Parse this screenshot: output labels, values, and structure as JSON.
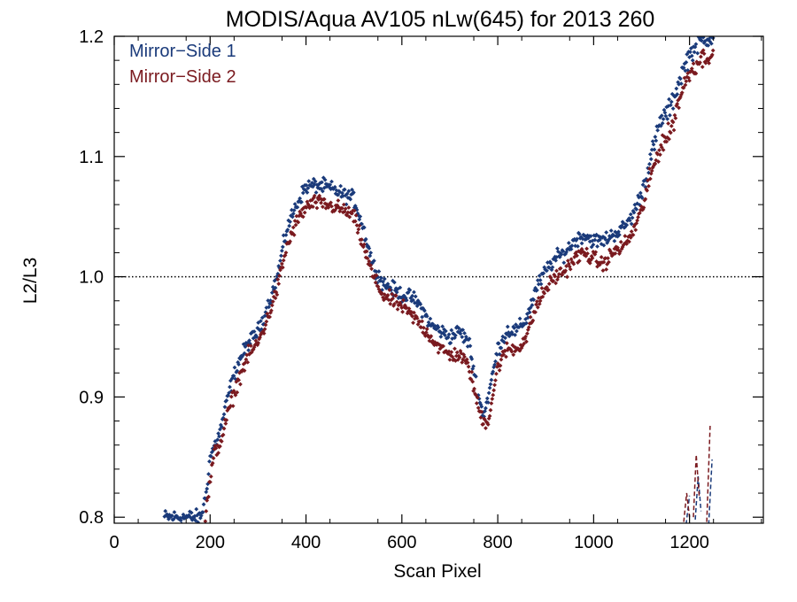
{
  "chart_data": {
    "type": "scatter",
    "title": "MODIS/Aqua AV105 nLw(645) for 2013 260",
    "xlabel": "Scan Pixel",
    "ylabel": "L2/L3",
    "xlim": [
      0,
      1354
    ],
    "ylim": [
      0.795,
      1.2
    ],
    "xticks": [
      0,
      200,
      400,
      600,
      800,
      1000,
      1200
    ],
    "xtick_labels": [
      "0",
      "200",
      "400",
      "600",
      "800",
      "1000",
      "1200"
    ],
    "yticks": [
      0.8,
      0.9,
      1.0,
      1.1,
      1.2
    ],
    "ytick_labels": [
      "0.8",
      "0.9",
      "1.0",
      "1.1",
      "1.2"
    ],
    "reference_line": 1.0,
    "grid": false,
    "legend_position": "top-left",
    "series": [
      {
        "name": "Mirror−Side 1",
        "color": "#1a3a7a",
        "anchors": [
          [
            105,
            0.8
          ],
          [
            180,
            0.8
          ],
          [
            190,
            0.815
          ],
          [
            200,
            0.85
          ],
          [
            220,
            0.87
          ],
          [
            240,
            0.905
          ],
          [
            260,
            0.93
          ],
          [
            280,
            0.945
          ],
          [
            300,
            0.955
          ],
          [
            320,
            0.975
          ],
          [
            340,
            1.0
          ],
          [
            360,
            1.04
          ],
          [
            380,
            1.06
          ],
          [
            400,
            1.075
          ],
          [
            420,
            1.076
          ],
          [
            440,
            1.075
          ],
          [
            460,
            1.072
          ],
          [
            480,
            1.068
          ],
          [
            500,
            1.065
          ],
          [
            520,
            1.04
          ],
          [
            540,
            1.01
          ],
          [
            560,
            0.995
          ],
          [
            580,
            0.99
          ],
          [
            600,
            0.985
          ],
          [
            620,
            0.983
          ],
          [
            640,
            0.975
          ],
          [
            660,
            0.96
          ],
          [
            680,
            0.955
          ],
          [
            700,
            0.95
          ],
          [
            720,
            0.955
          ],
          [
            740,
            0.945
          ],
          [
            760,
            0.9
          ],
          [
            770,
            0.885
          ],
          [
            780,
            0.9
          ],
          [
            800,
            0.94
          ],
          [
            820,
            0.955
          ],
          [
            840,
            0.955
          ],
          [
            860,
            0.965
          ],
          [
            880,
            0.99
          ],
          [
            900,
            1.005
          ],
          [
            920,
            1.015
          ],
          [
            940,
            1.02
          ],
          [
            960,
            1.03
          ],
          [
            980,
            1.035
          ],
          [
            1000,
            1.03
          ],
          [
            1020,
            1.03
          ],
          [
            1040,
            1.035
          ],
          [
            1060,
            1.04
          ],
          [
            1080,
            1.05
          ],
          [
            1100,
            1.07
          ],
          [
            1120,
            1.1
          ],
          [
            1140,
            1.13
          ],
          [
            1160,
            1.14
          ],
          [
            1180,
            1.165
          ],
          [
            1200,
            1.185
          ],
          [
            1220,
            1.195
          ],
          [
            1240,
            1.2
          ],
          [
            1250,
            1.2
          ]
        ],
        "tail_segments": [
          [
            [
              1193,
              0.794
            ],
            [
              1200,
              0.818
            ]
          ],
          [
            [
              1212,
              0.798
            ],
            [
              1218,
              0.834
            ],
            [
              1224,
              0.805
            ]
          ],
          [
            [
              1240,
              0.794
            ],
            [
              1247,
              0.848
            ]
          ]
        ]
      },
      {
        "name": "Mirror−Side 2",
        "color": "#7a1a1f",
        "anchors": [
          [
            190,
            0.8
          ],
          [
            200,
            0.83
          ],
          [
            210,
            0.855
          ],
          [
            220,
            0.86
          ],
          [
            240,
            0.89
          ],
          [
            260,
            0.915
          ],
          [
            280,
            0.935
          ],
          [
            300,
            0.945
          ],
          [
            320,
            0.965
          ],
          [
            340,
            0.99
          ],
          [
            360,
            1.025
          ],
          [
            380,
            1.045
          ],
          [
            400,
            1.058
          ],
          [
            420,
            1.062
          ],
          [
            440,
            1.06
          ],
          [
            460,
            1.058
          ],
          [
            480,
            1.055
          ],
          [
            500,
            1.05
          ],
          [
            520,
            1.025
          ],
          [
            540,
            1.0
          ],
          [
            560,
            0.985
          ],
          [
            580,
            0.98
          ],
          [
            600,
            0.975
          ],
          [
            620,
            0.968
          ],
          [
            640,
            0.96
          ],
          [
            660,
            0.95
          ],
          [
            680,
            0.94
          ],
          [
            700,
            0.935
          ],
          [
            720,
            0.935
          ],
          [
            740,
            0.925
          ],
          [
            760,
            0.89
          ],
          [
            770,
            0.88
          ],
          [
            780,
            0.88
          ],
          [
            800,
            0.925
          ],
          [
            820,
            0.94
          ],
          [
            840,
            0.94
          ],
          [
            860,
            0.95
          ],
          [
            880,
            0.975
          ],
          [
            900,
            0.99
          ],
          [
            920,
            1.0
          ],
          [
            940,
            1.005
          ],
          [
            960,
            1.015
          ],
          [
            980,
            1.02
          ],
          [
            1000,
            1.015
          ],
          [
            1020,
            1.01
          ],
          [
            1040,
            1.02
          ],
          [
            1060,
            1.025
          ],
          [
            1080,
            1.035
          ],
          [
            1100,
            1.055
          ],
          [
            1120,
            1.085
          ],
          [
            1140,
            1.11
          ],
          [
            1160,
            1.12
          ],
          [
            1180,
            1.15
          ],
          [
            1200,
            1.17
          ],
          [
            1220,
            1.18
          ],
          [
            1240,
            1.185
          ],
          [
            1250,
            1.185
          ]
        ],
        "tail_segments": [
          [
            [
              1188,
              0.796
            ],
            [
              1194,
              0.82
            ],
            [
              1200,
              0.8
            ]
          ],
          [
            [
              1208,
              0.8
            ],
            [
              1214,
              0.852
            ],
            [
              1220,
              0.818
            ]
          ],
          [
            [
              1236,
              0.796
            ],
            [
              1243,
              0.876
            ]
          ]
        ]
      }
    ]
  }
}
